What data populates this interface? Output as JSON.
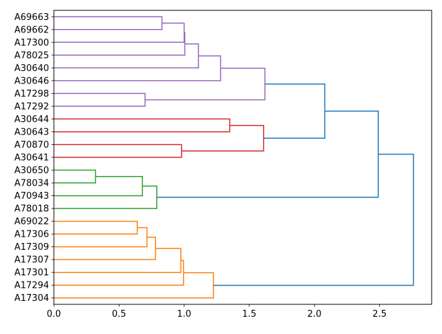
{
  "chart_data": {
    "type": "dendrogram",
    "orientation": "right",
    "title": "",
    "xlabel": "",
    "ylabel": "",
    "xlim": [
      0,
      2.9
    ],
    "xticks": [
      "0.0",
      "0.5",
      "1.0",
      "1.5",
      "2.0",
      "2.5"
    ],
    "xtick_values": [
      0,
      0.5,
      1.0,
      1.5,
      2.0,
      2.5
    ],
    "leaves": [
      "A69663",
      "A69662",
      "A17300",
      "A78025",
      "A30640",
      "A30646",
      "A17298",
      "A17292",
      "A30644",
      "A30643",
      "A70870",
      "A30641",
      "A30650",
      "A78034",
      "A70943",
      "A78018",
      "A69022",
      "A17306",
      "A17309",
      "A17307",
      "A17301",
      "A17294",
      "A17304"
    ],
    "colors": {
      "purple": "#9467bd",
      "red": "#d62728",
      "green": "#2ca02c",
      "orange": "#ff7f0e",
      "blue": "#1f77b4"
    },
    "merges": [
      {
        "id": "m0",
        "a": "A69663",
        "b": "A69662",
        "d": 0.83,
        "color": "purple"
      },
      {
        "id": "m1",
        "a": "m0",
        "b": "A17300",
        "d": 1.0,
        "color": "purple"
      },
      {
        "id": "m2",
        "a": "m1",
        "b": "A78025",
        "d": 1.005,
        "color": "purple"
      },
      {
        "id": "m3",
        "a": "m2",
        "b": "A30640",
        "d": 1.11,
        "color": "purple"
      },
      {
        "id": "m4",
        "a": "m3",
        "b": "A30646",
        "d": 1.28,
        "color": "purple"
      },
      {
        "id": "m5",
        "a": "A17298",
        "b": "A17292",
        "d": 0.7,
        "color": "purple"
      },
      {
        "id": "m6",
        "a": "m4",
        "b": "m5",
        "d": 1.62,
        "color": "purple"
      },
      {
        "id": "m7",
        "a": "A30644",
        "b": "A30643",
        "d": 1.35,
        "color": "red"
      },
      {
        "id": "m8",
        "a": "A70870",
        "b": "A30641",
        "d": 0.98,
        "color": "red"
      },
      {
        "id": "m9",
        "a": "m7",
        "b": "m8",
        "d": 1.61,
        "color": "red"
      },
      {
        "id": "m10",
        "a": "m6",
        "b": "m9",
        "d": 2.08,
        "color": "blue"
      },
      {
        "id": "m11",
        "a": "A30650",
        "b": "A78034",
        "d": 0.32,
        "color": "green"
      },
      {
        "id": "m12",
        "a": "m11",
        "b": "A70943",
        "d": 0.68,
        "color": "green"
      },
      {
        "id": "m13",
        "a": "m12",
        "b": "A78018",
        "d": 0.79,
        "color": "green"
      },
      {
        "id": "m14",
        "a": "m10",
        "b": "m13",
        "d": 2.49,
        "color": "blue"
      },
      {
        "id": "m15",
        "a": "A69022",
        "b": "A17306",
        "d": 0.64,
        "color": "orange"
      },
      {
        "id": "m16",
        "a": "m15",
        "b": "A17309",
        "d": 0.715,
        "color": "orange"
      },
      {
        "id": "m17",
        "a": "m16",
        "b": "A17307",
        "d": 0.78,
        "color": "orange"
      },
      {
        "id": "m18",
        "a": "m17",
        "b": "A17301",
        "d": 0.975,
        "color": "orange"
      },
      {
        "id": "m19",
        "a": "m18",
        "b": "A17294",
        "d": 0.995,
        "color": "orange"
      },
      {
        "id": "m20",
        "a": "m19",
        "b": "A17304",
        "d": 1.225,
        "color": "orange"
      },
      {
        "id": "m21",
        "a": "m14",
        "b": "m20",
        "d": 2.76,
        "color": "blue"
      }
    ]
  }
}
